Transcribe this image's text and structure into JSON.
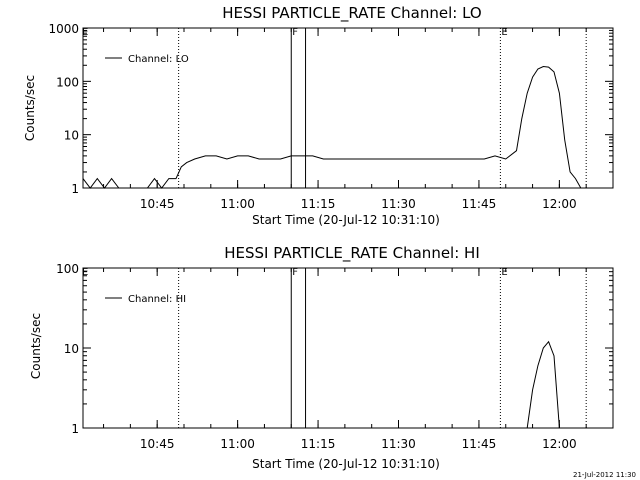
{
  "chart_data": [
    {
      "type": "line",
      "title": "HESSI PARTICLE_RATE Channel: LO",
      "xlabel": "Start Time (20-Jul-12 10:31:10)",
      "ylabel": "Counts/sec",
      "yscale": "log",
      "ylim": [
        1,
        1000
      ],
      "xlim": [
        "10:31:10",
        "12:10:00"
      ],
      "x_ticks": [
        "10:45",
        "11:00",
        "11:15",
        "11:30",
        "11:45",
        "12:00"
      ],
      "y_ticks": [
        "1",
        "10",
        "100",
        "1000"
      ],
      "legend": {
        "entry": "Channel: LO",
        "placement": "top-left"
      },
      "grid": false,
      "markers": [
        {
          "label": "",
          "time": "10:49:00",
          "style": "dotted"
        },
        {
          "label": "F",
          "time": "11:10:00",
          "style": "solid"
        },
        {
          "label": "",
          "time": "11:12:40",
          "style": "solid"
        },
        {
          "label": "E",
          "time": "11:49:00",
          "style": "dotted"
        },
        {
          "label": "",
          "time": "12:05:00",
          "style": "dotted"
        }
      ],
      "corner_label": "E",
      "series": [
        {
          "name": "Channel: LO",
          "x": [
            "10:31:10",
            "10:32:30",
            "10:33:50",
            "10:35:10",
            "10:36:30",
            "10:37:50",
            "10:39:10",
            "10:40:30",
            "10:41:50",
            "10:43:10",
            "10:44:30",
            "10:45:50",
            "10:47:10",
            "10:48:30",
            "10:49:30",
            "10:50:30",
            "10:52:00",
            "10:54:00",
            "10:56:00",
            "10:58:00",
            "11:00:00",
            "11:02:00",
            "11:04:00",
            "11:06:00",
            "11:08:00",
            "11:10:00",
            "11:12:00",
            "11:14:00",
            "11:16:00",
            "11:18:00",
            "11:20:00",
            "11:22:00",
            "11:24:00",
            "11:26:00",
            "11:28:00",
            "11:30:00",
            "11:32:00",
            "11:34:00",
            "11:36:00",
            "11:38:00",
            "11:40:00",
            "11:42:00",
            "11:44:00",
            "11:46:00",
            "11:48:00",
            "11:50:00",
            "11:52:00",
            "11:53:00",
            "11:54:00",
            "11:55:00",
            "11:56:00",
            "11:57:00",
            "11:58:00",
            "11:59:00",
            "12:00:00",
            "12:01:00",
            "12:02:00",
            "12:03:00",
            "12:04:00",
            "12:05:00"
          ],
          "y": [
            1.5,
            1,
            1.5,
            1,
            1.5,
            1,
            1,
            1,
            1,
            1,
            1.5,
            1,
            1.5,
            1.5,
            2.5,
            3,
            3.5,
            4,
            4,
            3.5,
            4,
            4,
            3.5,
            3.5,
            3.5,
            4,
            4,
            4,
            3.5,
            3.5,
            3.5,
            3.5,
            3.5,
            3.5,
            3.5,
            3.5,
            3.5,
            3.5,
            3.5,
            3.5,
            3.5,
            3.5,
            3.5,
            3.5,
            4,
            3.5,
            5,
            20,
            60,
            120,
            170,
            190,
            185,
            150,
            60,
            8,
            2,
            1.5,
            1,
            1
          ]
        }
      ]
    },
    {
      "type": "line",
      "title": "HESSI PARTICLE_RATE Channel: HI",
      "xlabel": "Start Time (20-Jul-12 10:31:10)",
      "ylabel": "Counts/sec",
      "yscale": "log",
      "ylim": [
        1,
        100
      ],
      "xlim": [
        "10:31:10",
        "12:10:00"
      ],
      "x_ticks": [
        "10:45",
        "11:00",
        "11:15",
        "11:30",
        "11:45",
        "12:00"
      ],
      "y_ticks": [
        "1",
        "10",
        "100"
      ],
      "legend": {
        "entry": "Channel: HI",
        "placement": "top-left"
      },
      "grid": false,
      "markers": [
        {
          "label": "",
          "time": "10:49:00",
          "style": "dotted"
        },
        {
          "label": "F",
          "time": "11:10:00",
          "style": "solid"
        },
        {
          "label": "",
          "time": "11:12:40",
          "style": "solid"
        },
        {
          "label": "E",
          "time": "11:49:00",
          "style": "dotted"
        },
        {
          "label": "",
          "time": "12:05:00",
          "style": "dotted"
        }
      ],
      "corner_label": "E",
      "series": [
        {
          "name": "Channel: HI",
          "x": [
            "11:54:00",
            "11:55:00",
            "11:56:00",
            "11:57:00",
            "11:58:00",
            "11:59:00",
            "12:00:00"
          ],
          "y": [
            1,
            3,
            6,
            10,
            12,
            8,
            1
          ]
        }
      ]
    }
  ],
  "footer": {
    "timestamp": "21-Jul-2012 11:30"
  }
}
